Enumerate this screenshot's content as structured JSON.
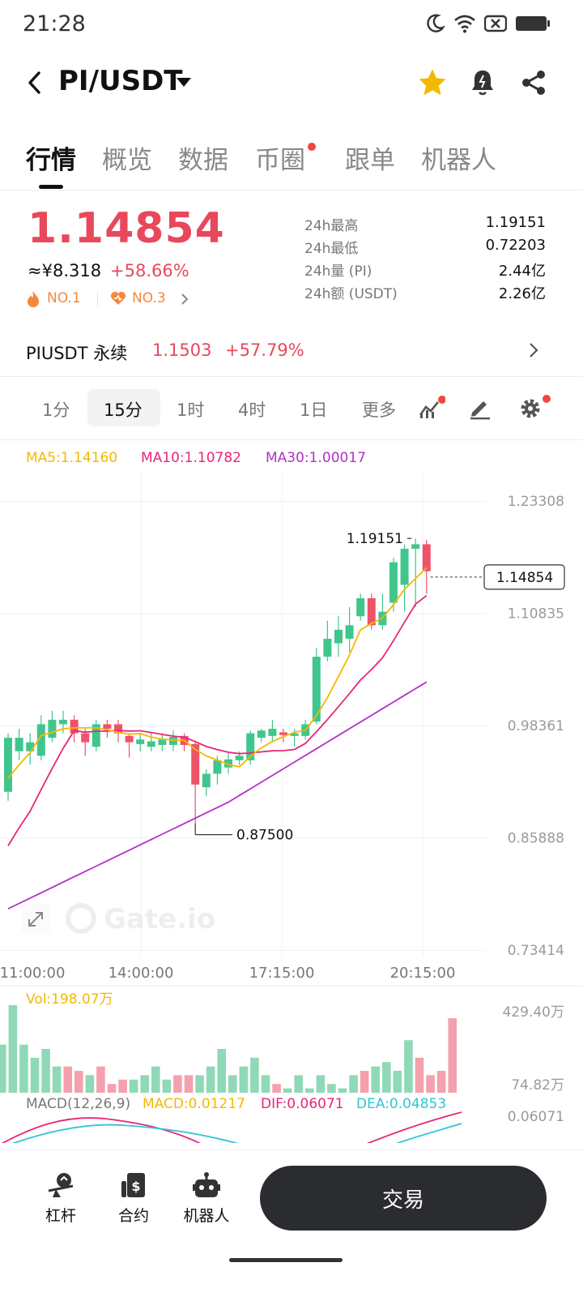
{
  "status_bar": {
    "time": "21:28"
  },
  "header": {
    "pair": "PI/USDT"
  },
  "tabs": [
    {
      "label": "行情",
      "active": true
    },
    {
      "label": "概览",
      "active": false
    },
    {
      "label": "数据",
      "active": false
    },
    {
      "label": "币圈",
      "active": false,
      "dot": true
    },
    {
      "label": "跟单",
      "active": false
    },
    {
      "label": "机器人",
      "active": false
    }
  ],
  "price": {
    "last": "1.14854",
    "cny": "≈¥8.318",
    "change_pct": "+58.66%",
    "rank1": "NO.1",
    "rank2": "NO.3"
  },
  "stats": [
    {
      "label": "24h最高",
      "value": "1.19151"
    },
    {
      "label": "24h最低",
      "value": "0.72203"
    },
    {
      "label": "24h量 (PI)",
      "value": "2.44亿"
    },
    {
      "label": "24h额 (USDT)",
      "value": "2.26亿"
    }
  ],
  "perpetual": {
    "name": "PIUSDT 永续",
    "price": "1.1503",
    "change_pct": "+57.79%"
  },
  "intervals": [
    {
      "label": "1分",
      "active": false
    },
    {
      "label": "15分",
      "active": true
    },
    {
      "label": "1时",
      "active": false
    },
    {
      "label": "4时",
      "active": false
    },
    {
      "label": "1日",
      "active": false
    },
    {
      "label": "更多",
      "active": false
    }
  ],
  "ma_legend": {
    "ma5": "MA5:1.14160",
    "ma10": "MA10:1.10782",
    "ma30": "MA30:1.00017"
  },
  "colors": {
    "up": "#e8485b",
    "up_candle": "#ef5369",
    "down_candle": "#3fc68d",
    "ma5": "#f5b800",
    "ma10": "#e8257a",
    "ma30": "#b430c8",
    "dif": "#e8257a",
    "dea": "#2dc7d4",
    "trade_button": "#2b2c30"
  },
  "chart_data": {
    "type": "candlestick",
    "y_axis_labels": [
      "1.23308",
      "1.10835",
      "0.98361",
      "0.85888",
      "0.73414"
    ],
    "x_axis_labels": [
      "11:00:00",
      "14:00:00",
      "17:15:00",
      "20:15:00"
    ],
    "current_price_label": "1.14854",
    "high_marker": "1.19151",
    "low_marker": "0.87500",
    "candles": [
      {
        "o": 0.91,
        "c": 0.97,
        "h": 0.975,
        "l": 0.9
      },
      {
        "o": 0.955,
        "c": 0.97,
        "h": 0.98,
        "l": 0.945
      },
      {
        "o": 0.955,
        "c": 0.965,
        "h": 0.975,
        "l": 0.94
      },
      {
        "o": 0.95,
        "c": 0.985,
        "h": 0.995,
        "l": 0.945
      },
      {
        "o": 0.97,
        "c": 0.99,
        "h": 1.0,
        "l": 0.965
      },
      {
        "o": 0.985,
        "c": 0.99,
        "h": 1.0,
        "l": 0.975
      },
      {
        "o": 0.99,
        "c": 0.975,
        "h": 0.995,
        "l": 0.965
      },
      {
        "o": 0.975,
        "c": 0.965,
        "h": 0.98,
        "l": 0.95
      },
      {
        "o": 0.96,
        "c": 0.985,
        "h": 0.99,
        "l": 0.955
      },
      {
        "o": 0.985,
        "c": 0.98,
        "h": 0.99,
        "l": 0.97
      },
      {
        "o": 0.985,
        "c": 0.975,
        "h": 0.99,
        "l": 0.965
      },
      {
        "o": 0.972,
        "c": 0.965,
        "h": 0.975,
        "l": 0.948
      },
      {
        "o": 0.963,
        "c": 0.968,
        "h": 0.975,
        "l": 0.955
      },
      {
        "o": 0.96,
        "c": 0.966,
        "h": 0.975,
        "l": 0.955
      },
      {
        "o": 0.962,
        "c": 0.968,
        "h": 0.975,
        "l": 0.955
      },
      {
        "o": 0.962,
        "c": 0.971,
        "h": 0.978,
        "l": 0.955
      },
      {
        "o": 0.972,
        "c": 0.962,
        "h": 0.975,
        "l": 0.955
      },
      {
        "o": 0.963,
        "c": 0.918,
        "h": 0.965,
        "l": 0.875
      },
      {
        "o": 0.915,
        "c": 0.93,
        "h": 0.935,
        "l": 0.905
      },
      {
        "o": 0.93,
        "c": 0.945,
        "h": 0.95,
        "l": 0.918
      },
      {
        "o": 0.937,
        "c": 0.946,
        "h": 0.955,
        "l": 0.93
      },
      {
        "o": 0.945,
        "c": 0.95,
        "h": 0.955,
        "l": 0.94
      },
      {
        "o": 0.945,
        "c": 0.975,
        "h": 0.978,
        "l": 0.94
      },
      {
        "o": 0.97,
        "c": 0.978,
        "h": 0.98,
        "l": 0.965
      },
      {
        "o": 0.972,
        "c": 0.98,
        "h": 0.99,
        "l": 0.965
      },
      {
        "o": 0.976,
        "c": 0.973,
        "h": 0.98,
        "l": 0.965
      },
      {
        "o": 0.972,
        "c": 0.975,
        "h": 0.98,
        "l": 0.96
      },
      {
        "o": 0.972,
        "c": 0.985,
        "h": 0.99,
        "l": 0.968
      },
      {
        "o": 0.988,
        "c": 1.06,
        "h": 1.07,
        "l": 0.985
      },
      {
        "o": 1.06,
        "c": 1.08,
        "h": 1.1,
        "l": 1.055
      },
      {
        "o": 1.075,
        "c": 1.09,
        "h": 1.105,
        "l": 1.06
      },
      {
        "o": 1.08,
        "c": 1.095,
        "h": 1.115,
        "l": 1.065
      },
      {
        "o": 1.105,
        "c": 1.125,
        "h": 1.13,
        "l": 1.1
      },
      {
        "o": 1.125,
        "c": 1.095,
        "h": 1.13,
        "l": 1.09
      },
      {
        "o": 1.095,
        "c": 1.11,
        "h": 1.13,
        "l": 1.09
      },
      {
        "o": 1.12,
        "c": 1.165,
        "h": 1.17,
        "l": 1.11
      },
      {
        "o": 1.14,
        "c": 1.18,
        "h": 1.185,
        "l": 1.11
      },
      {
        "o": 1.18,
        "c": 1.185,
        "h": 1.19151,
        "l": 1.115
      },
      {
        "o": 1.185,
        "c": 1.155,
        "h": 1.19,
        "l": 1.13
      }
    ],
    "volume_label": "Vol:198.07万",
    "volume_axis": [
      "429.40万",
      "74.82万"
    ],
    "macd_label": "MACD(12,26,9)",
    "macd_value": "MACD:0.01217",
    "dif_value": "DIF:0.06071",
    "dea_value": "DEA:0.04853",
    "macd_axis": "0.06071"
  },
  "bottom_bar": {
    "leverage": "杠杆",
    "contract": "合约",
    "robot": "机器人",
    "trade": "交易"
  },
  "watermark": "Gate.io"
}
